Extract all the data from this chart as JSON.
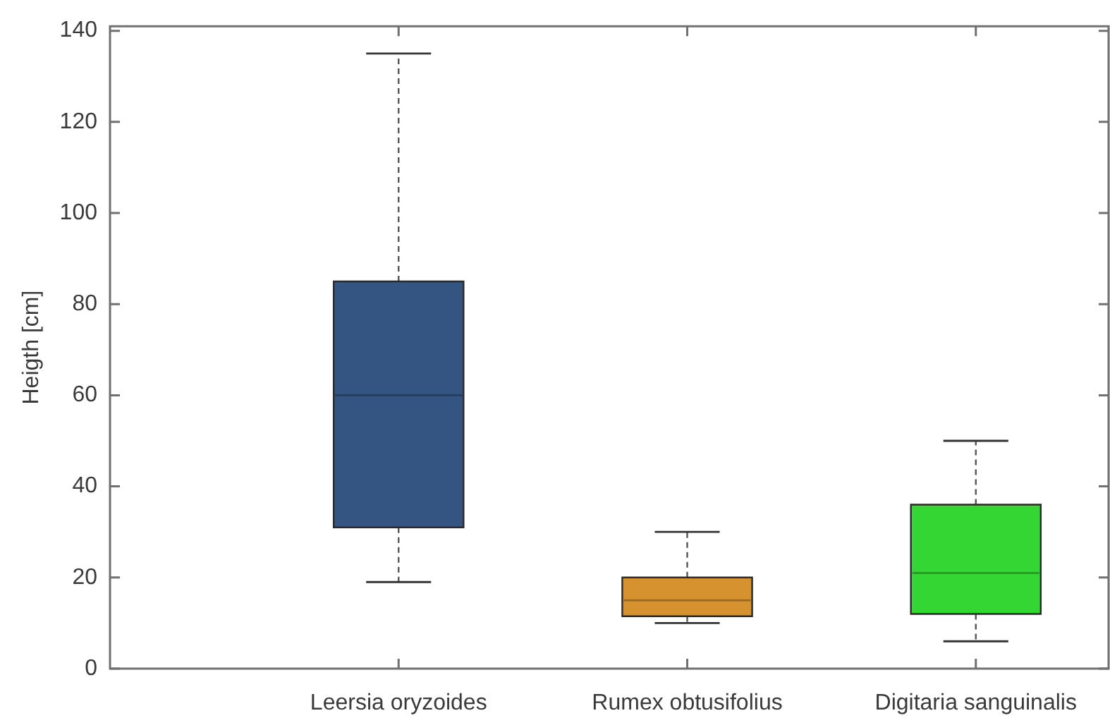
{
  "chart_data": {
    "type": "box",
    "ylabel": "Heigth [cm]",
    "categories": [
      "Leersia oryzoides",
      "Rumex obtusifolius",
      "Digitaria sanguinalis"
    ],
    "boxes": [
      {
        "low": 19,
        "q1": 31,
        "median": 60,
        "q3": 85,
        "high": 135
      },
      {
        "low": 10,
        "q1": 11.5,
        "median": 15,
        "q3": 20,
        "high": 30
      },
      {
        "low": 6,
        "q1": 12,
        "median": 21,
        "q3": 36,
        "high": 50
      }
    ],
    "colors": [
      "#345482",
      "#d5922f",
      "#33d633"
    ],
    "ylim": [
      0,
      141
    ],
    "yticks": [
      0,
      20,
      40,
      60,
      80,
      100,
      120,
      140
    ],
    "grid": false
  }
}
